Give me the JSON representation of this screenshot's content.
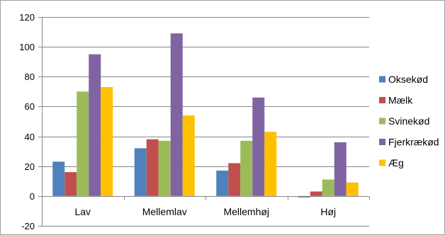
{
  "chart_data": {
    "type": "bar",
    "title": "",
    "xlabel": "",
    "ylabel": "",
    "ylim": [
      -20,
      120
    ],
    "yticks": [
      -20,
      0,
      20,
      40,
      60,
      80,
      100,
      120
    ],
    "ytick_labels": [
      "-20",
      "0",
      "20",
      "40",
      "60",
      "80",
      "100",
      "120"
    ],
    "grid": true,
    "legend_position": "right",
    "categories": [
      "Lav",
      "Mellemlav",
      "Mellemhøj",
      "Høj"
    ],
    "series": [
      {
        "name": "Oksekød",
        "color": "#4f81bd",
        "values": [
          23,
          32,
          17,
          -1
        ]
      },
      {
        "name": "Mælk",
        "color": "#c0504d",
        "values": [
          16,
          38,
          22,
          3
        ]
      },
      {
        "name": "Svinekød",
        "color": "#9bbb59",
        "values": [
          70,
          37,
          37,
          11
        ]
      },
      {
        "name": "Fjerkrækød",
        "color": "#8064a2",
        "values": [
          95,
          109,
          66,
          36
        ]
      },
      {
        "name": "Æg",
        "color": "#ffc000",
        "values": [
          73,
          54,
          43,
          9
        ]
      }
    ]
  }
}
